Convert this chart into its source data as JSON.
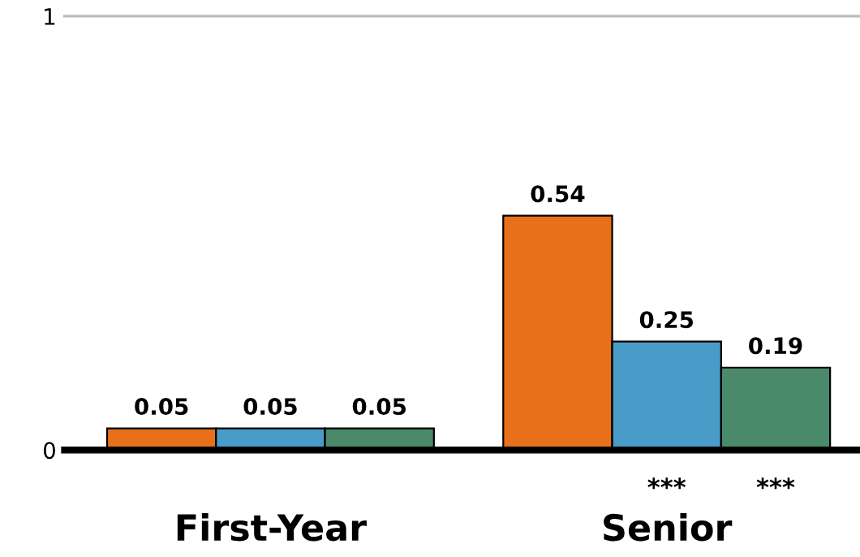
{
  "chart_data": {
    "type": "bar",
    "categories": [
      "First-Year",
      "Senior"
    ],
    "series": [
      {
        "color": "#e8701a",
        "values": [
          0.05,
          0.54
        ]
      },
      {
        "color": "#4a9cc8",
        "values": [
          0.05,
          0.25
        ]
      },
      {
        "color": "#4a8a6a",
        "values": [
          0.05,
          0.19
        ]
      }
    ],
    "ylim": [
      0,
      1
    ],
    "yticks": [
      0,
      1
    ],
    "ref_lines": [
      {
        "axis": "y",
        "value": 1,
        "color": "#bbbbbb"
      }
    ],
    "data_labels": true,
    "annotations": [
      "***",
      "***"
    ]
  }
}
